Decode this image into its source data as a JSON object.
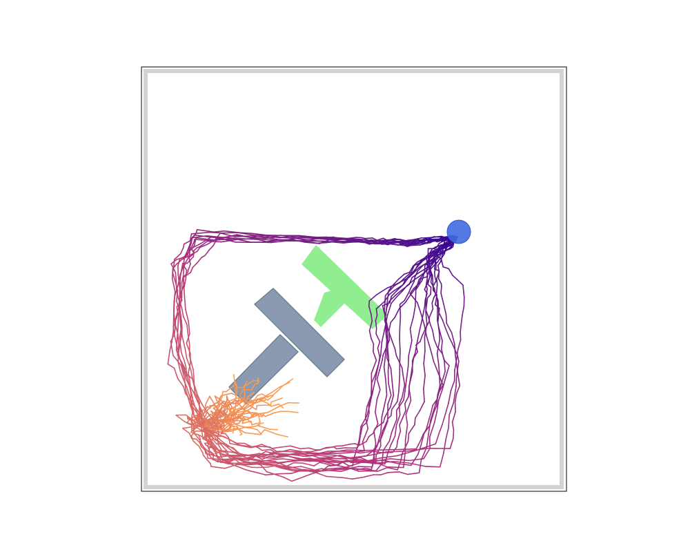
{
  "scene": {
    "type": "pusht-trajectory-visualization",
    "colors": {
      "background": "#ffffff",
      "frame_outer": "#000000",
      "wall": "#d3d3d3",
      "goal_tee": "#90ee90",
      "block_tee": "#8a9bb1",
      "block_tee_border": "#6f7f95",
      "agent": "#4169e1",
      "trajectory_start": "#fca050",
      "trajectory_mid": "#b5367a",
      "trajectory_end": "#2d0594"
    },
    "trajectory_count": 30,
    "trajectory_colormap": "plasma"
  }
}
